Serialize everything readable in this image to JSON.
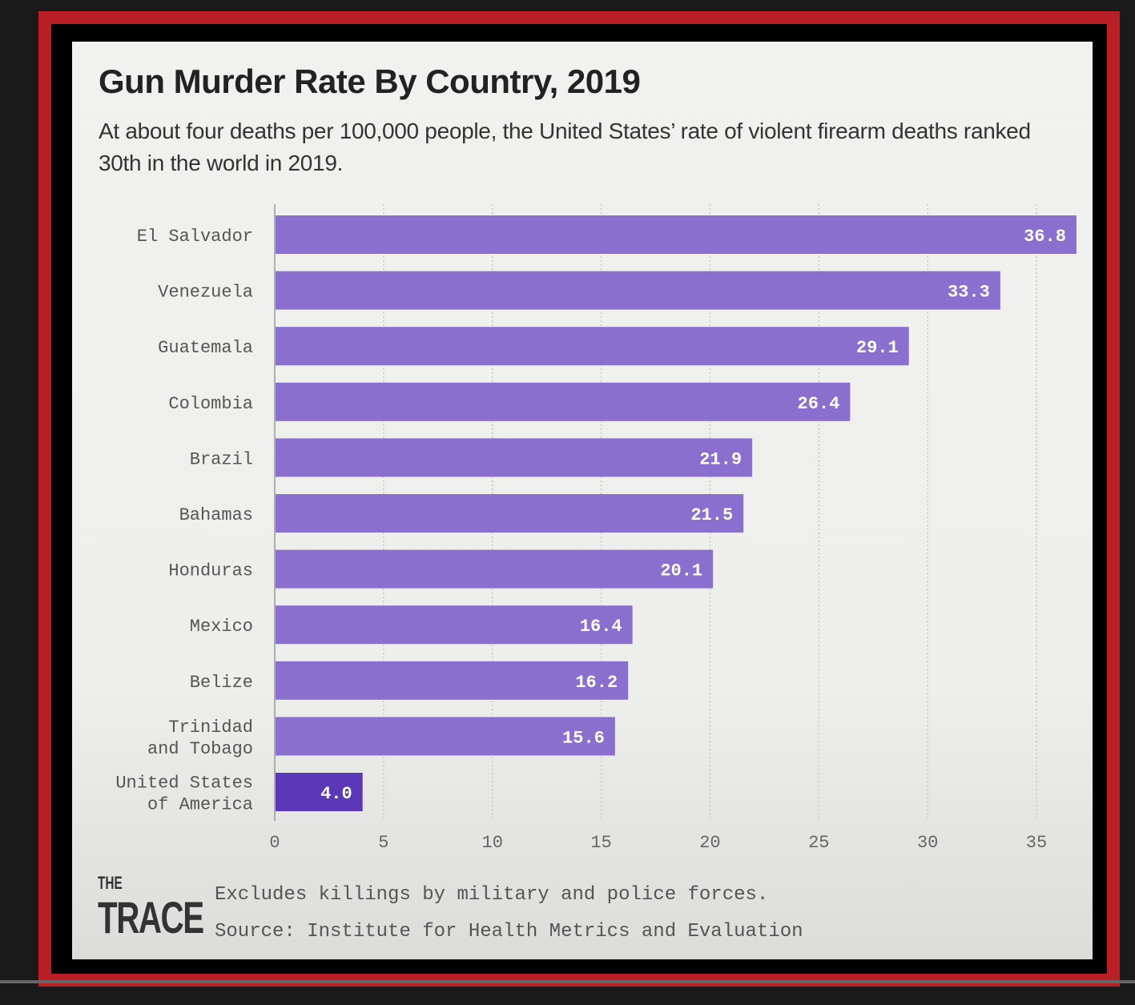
{
  "chart_data": {
    "type": "bar",
    "orientation": "horizontal",
    "title": "Gun Murder Rate By Country, 2019",
    "subtitle": "At about four deaths per 100,000 people, the United States’ rate of violent firearm deaths ranked 30th in the world in 2019.",
    "categories": [
      [
        "El Salvador"
      ],
      [
        "Venezuela"
      ],
      [
        "Guatemala"
      ],
      [
        "Colombia"
      ],
      [
        "Brazil"
      ],
      [
        "Bahamas"
      ],
      [
        "Honduras"
      ],
      [
        "Mexico"
      ],
      [
        "Belize"
      ],
      [
        "Trinidad",
        "and Tobago"
      ],
      [
        "United States",
        "of America"
      ]
    ],
    "values": [
      36.8,
      33.3,
      29.1,
      26.4,
      21.9,
      21.5,
      20.1,
      16.4,
      16.2,
      15.6,
      4.0
    ],
    "value_labels": [
      "36.8",
      "33.3",
      "29.1",
      "26.4",
      "21.9",
      "21.5",
      "20.1",
      "16.4",
      "16.2",
      "15.6",
      "4.0"
    ],
    "xlim": [
      0,
      37
    ],
    "ticks": [
      0,
      5,
      10,
      15,
      20,
      25,
      30,
      35
    ],
    "grid": true,
    "xlabel": "",
    "ylabel": "",
    "colors": {
      "bar": "#8a6fcf",
      "highlight": "#5a38b8",
      "highlight_index": 10
    }
  },
  "footer": {
    "logo_top": "THE",
    "logo_bottom": "TRACE",
    "note": "Excludes killings by military and police forces.",
    "source": "Source: Institute for Health Metrics and Evaluation"
  }
}
